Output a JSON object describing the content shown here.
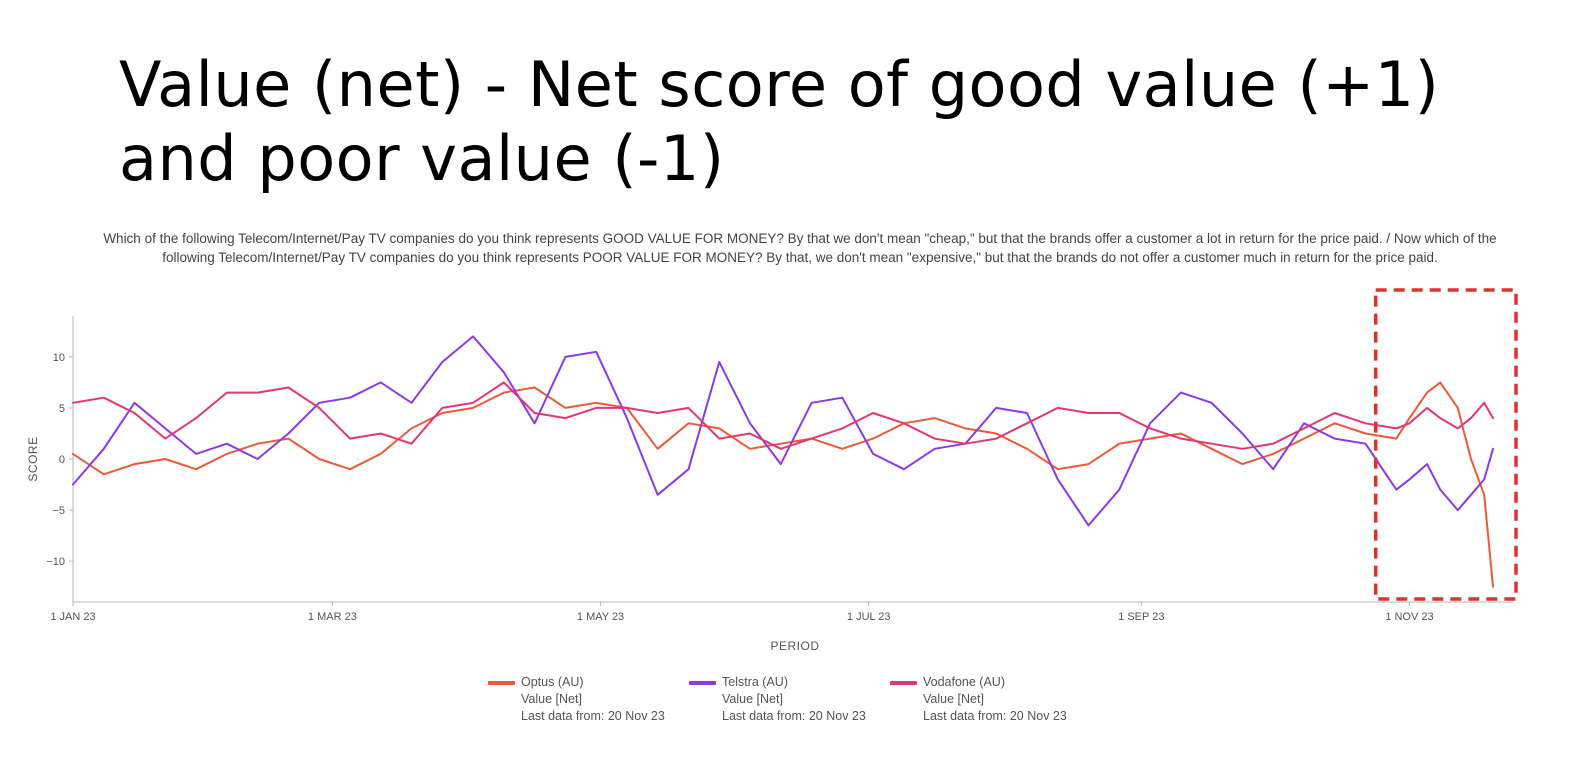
{
  "title": "Value (net) - Net score of good value (+1) and poor value (-1)",
  "subtitle": "Which of the following Telecom/Internet/Pay TV companies do you think represents GOOD VALUE FOR MONEY? By that we don't mean \"cheap,\" but that the brands offer a customer a lot in return for the price paid. / Now which of the following Telecom/Internet/Pay TV companies do you think represents POOR VALUE FOR MONEY? By that, we don't mean \"expensive,\" but that the brands do not offer a customer much in return for the price paid.",
  "chart_data": {
    "type": "line",
    "xlabel": "PERIOD",
    "ylabel": "SCORE",
    "x_range": [
      "2023-01-01",
      "2023-11-20"
    ],
    "ylim": [
      -14,
      14
    ],
    "y_ticks": [
      10,
      5,
      0,
      -5,
      -10
    ],
    "y_tick_labels": [
      "10",
      "5",
      "0",
      "−5",
      "−10"
    ],
    "x_ticks": [
      "2023-01-01",
      "2023-03-01",
      "2023-05-01",
      "2023-07-01",
      "2023-09-01",
      "2023-11-01"
    ],
    "x_tick_labels": [
      "1 JAN 23",
      "1 MAR 23",
      "1 MAY 23",
      "1 JUL 23",
      "1 SEP 23",
      "1 NOV 23"
    ],
    "grid": false,
    "legend_position": "bottom",
    "highlight_box": {
      "x_start": "2023-10-25",
      "x_end": "2023-11-30",
      "color": "#e0312b"
    },
    "series": [
      {
        "name": "Optus (AU)",
        "sub_label": "Value [Net]",
        "last_data": "Last data from: 20 Nov 23",
        "color": "#ef5a36",
        "x": [
          "2023-01-01",
          "2023-01-08",
          "2023-01-15",
          "2023-01-22",
          "2023-01-29",
          "2023-02-05",
          "2023-02-12",
          "2023-02-19",
          "2023-02-26",
          "2023-03-05",
          "2023-03-12",
          "2023-03-19",
          "2023-03-26",
          "2023-04-02",
          "2023-04-09",
          "2023-04-16",
          "2023-04-23",
          "2023-04-30",
          "2023-05-07",
          "2023-05-14",
          "2023-05-21",
          "2023-05-28",
          "2023-06-04",
          "2023-06-11",
          "2023-06-18",
          "2023-06-25",
          "2023-07-02",
          "2023-07-09",
          "2023-07-16",
          "2023-07-23",
          "2023-07-30",
          "2023-08-06",
          "2023-08-13",
          "2023-08-20",
          "2023-08-27",
          "2023-09-03",
          "2023-09-10",
          "2023-09-17",
          "2023-09-24",
          "2023-10-01",
          "2023-10-08",
          "2023-10-15",
          "2023-10-22",
          "2023-10-29",
          "2023-11-01",
          "2023-11-05",
          "2023-11-08",
          "2023-11-12",
          "2023-11-15",
          "2023-11-18",
          "2023-11-20"
        ],
        "values": [
          0.5,
          -1.5,
          -0.5,
          0.0,
          -1.0,
          0.5,
          1.5,
          2.0,
          0.0,
          -1.0,
          0.5,
          3.0,
          4.5,
          5.0,
          6.5,
          7.0,
          5.0,
          5.5,
          5.0,
          1.0,
          3.5,
          3.0,
          1.0,
          1.5,
          2.0,
          1.0,
          2.0,
          3.5,
          4.0,
          3.0,
          2.5,
          1.0,
          -1.0,
          -0.5,
          1.5,
          2.0,
          2.5,
          1.0,
          -0.5,
          0.5,
          2.0,
          3.5,
          2.5,
          2.0,
          4.0,
          6.5,
          7.5,
          5.0,
          0.0,
          -3.5,
          -12.5
        ]
      },
      {
        "name": "Telstra (AU)",
        "sub_label": "Value [Net]",
        "last_data": "Last data from: 20 Nov 23",
        "color": "#8c3ae6",
        "x": [
          "2023-01-01",
          "2023-01-08",
          "2023-01-15",
          "2023-01-22",
          "2023-01-29",
          "2023-02-05",
          "2023-02-12",
          "2023-02-19",
          "2023-02-26",
          "2023-03-05",
          "2023-03-12",
          "2023-03-19",
          "2023-03-26",
          "2023-04-02",
          "2023-04-09",
          "2023-04-16",
          "2023-04-23",
          "2023-04-30",
          "2023-05-07",
          "2023-05-14",
          "2023-05-21",
          "2023-05-28",
          "2023-06-04",
          "2023-06-11",
          "2023-06-18",
          "2023-06-25",
          "2023-07-02",
          "2023-07-09",
          "2023-07-16",
          "2023-07-23",
          "2023-07-30",
          "2023-08-06",
          "2023-08-13",
          "2023-08-20",
          "2023-08-27",
          "2023-09-03",
          "2023-09-10",
          "2023-09-17",
          "2023-09-24",
          "2023-10-01",
          "2023-10-08",
          "2023-10-15",
          "2023-10-22",
          "2023-10-29",
          "2023-11-01",
          "2023-11-05",
          "2023-11-08",
          "2023-11-12",
          "2023-11-15",
          "2023-11-18",
          "2023-11-20"
        ],
        "values": [
          -2.5,
          1.0,
          5.5,
          3.0,
          0.5,
          1.5,
          0.0,
          2.5,
          5.5,
          6.0,
          7.5,
          5.5,
          9.5,
          12.0,
          8.5,
          3.5,
          10.0,
          10.5,
          4.0,
          -3.5,
          -1.0,
          9.5,
          3.5,
          -0.5,
          5.5,
          6.0,
          0.5,
          -1.0,
          1.0,
          1.5,
          5.0,
          4.5,
          -2.0,
          -6.5,
          -3.0,
          3.5,
          6.5,
          5.5,
          2.5,
          -1.0,
          3.5,
          2.0,
          1.5,
          -3.0,
          -2.0,
          -0.5,
          -3.0,
          -5.0,
          -3.5,
          -2.0,
          1.0
        ]
      },
      {
        "name": "Vodafone (AU)",
        "sub_label": "Value [Net]",
        "last_data": "Last data from: 20 Nov 23",
        "color": "#e33775",
        "x": [
          "2023-01-01",
          "2023-01-08",
          "2023-01-15",
          "2023-01-22",
          "2023-01-29",
          "2023-02-05",
          "2023-02-12",
          "2023-02-19",
          "2023-02-26",
          "2023-03-05",
          "2023-03-12",
          "2023-03-19",
          "2023-03-26",
          "2023-04-02",
          "2023-04-09",
          "2023-04-16",
          "2023-04-23",
          "2023-04-30",
          "2023-05-07",
          "2023-05-14",
          "2023-05-21",
          "2023-05-28",
          "2023-06-04",
          "2023-06-11",
          "2023-06-18",
          "2023-06-25",
          "2023-07-02",
          "2023-07-09",
          "2023-07-16",
          "2023-07-23",
          "2023-07-30",
          "2023-08-06",
          "2023-08-13",
          "2023-08-20",
          "2023-08-27",
          "2023-09-03",
          "2023-09-10",
          "2023-09-17",
          "2023-09-24",
          "2023-10-01",
          "2023-10-08",
          "2023-10-15",
          "2023-10-22",
          "2023-10-29",
          "2023-11-01",
          "2023-11-05",
          "2023-11-08",
          "2023-11-12",
          "2023-11-15",
          "2023-11-18",
          "2023-11-20"
        ],
        "values": [
          5.5,
          6.0,
          4.5,
          2.0,
          4.0,
          6.5,
          6.5,
          7.0,
          5.0,
          2.0,
          2.5,
          1.5,
          5.0,
          5.5,
          7.5,
          4.5,
          4.0,
          5.0,
          5.0,
          4.5,
          5.0,
          2.0,
          2.5,
          1.0,
          2.0,
          3.0,
          4.5,
          3.5,
          2.0,
          1.5,
          2.0,
          3.5,
          5.0,
          4.5,
          4.5,
          3.0,
          2.0,
          1.5,
          1.0,
          1.5,
          3.0,
          4.5,
          3.5,
          3.0,
          3.5,
          5.0,
          4.0,
          3.0,
          4.0,
          5.5,
          4.0
        ]
      }
    ]
  }
}
